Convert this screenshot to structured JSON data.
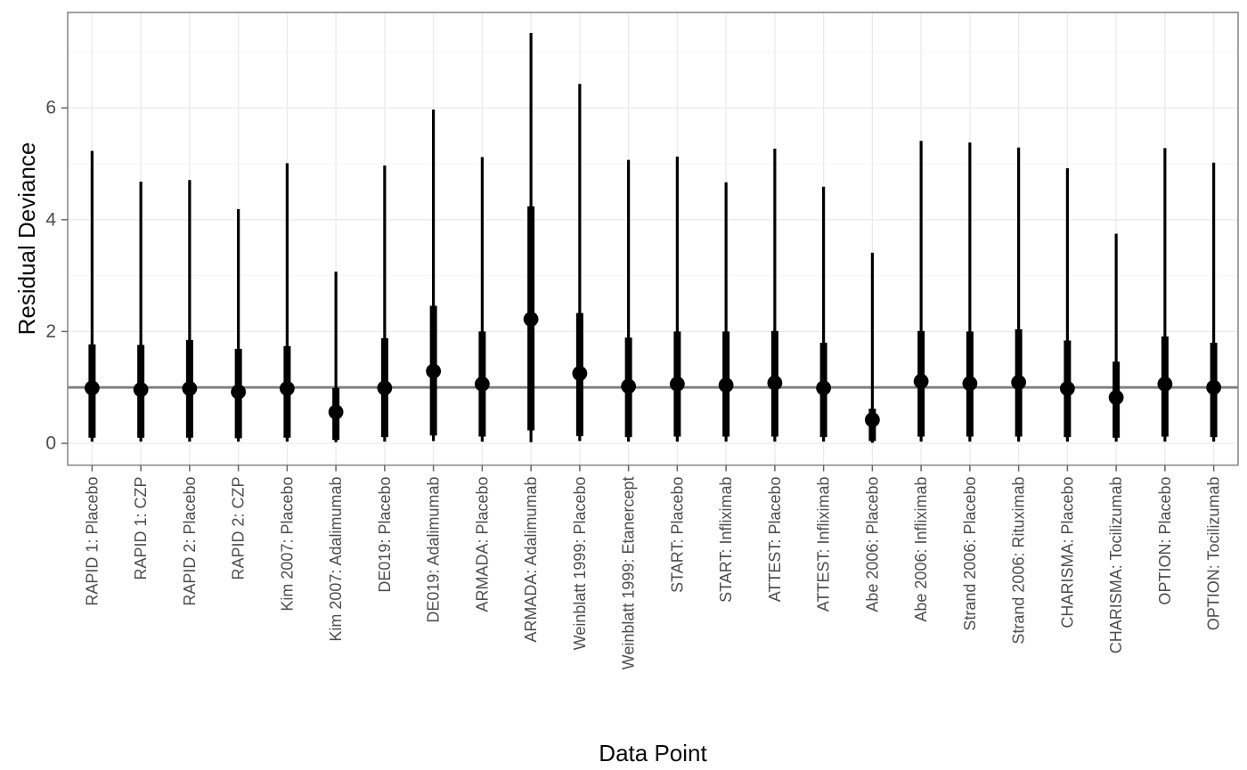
{
  "chart_data": {
    "type": "pointrange",
    "title": "",
    "xlabel": "Data Point",
    "ylabel": "Residual Deviance",
    "ylim": [
      -0.38,
      7.7
    ],
    "yticks": [
      0,
      2,
      4,
      6
    ],
    "yminor": [
      1,
      3,
      5,
      7
    ],
    "reference_line_y": 1.0,
    "grid": true,
    "legend": "none",
    "description": "Posterior mean residual deviance per data point with thick 50% and thin 95% credible intervals; horizontal grey reference line at 1.",
    "categories": [
      "RAPID 1: Placebo",
      "RAPID 1: CZP",
      "RAPID 2: Placebo",
      "RAPID 2: CZP",
      "Kim 2007: Placebo",
      "Kim 2007: Adalimumab",
      "DE019: Placebo",
      "DE019: Adalimumab",
      "ARMADA: Placebo",
      "ARMADA: Adalimumab",
      "Weinblatt 1999: Placebo",
      "Weinblatt 1999: Etanercept",
      "START: Placebo",
      "START: Infliximab",
      "ATTEST: Placebo",
      "ATTEST: Infliximab",
      "Abe 2006: Placebo",
      "Abe 2006: Infliximab",
      "Strand 2006: Placebo",
      "Strand 2006: Rituximab",
      "CHARISMA: Placebo",
      "CHARISMA: Tocilizumab",
      "OPTION: Placebo",
      "OPTION: Tocilizumab"
    ],
    "data_points": [
      {
        "label": "RAPID 1: Placebo",
        "mean": 0.99,
        "ci50": [
          0.1,
          1.77
        ],
        "ci95": [
          0.03,
          5.23
        ]
      },
      {
        "label": "RAPID 1: CZP",
        "mean": 0.96,
        "ci50": [
          0.1,
          1.76
        ],
        "ci95": [
          0.03,
          4.68
        ]
      },
      {
        "label": "RAPID 2: Placebo",
        "mean": 0.98,
        "ci50": [
          0.1,
          1.85
        ],
        "ci95": [
          0.03,
          4.71
        ]
      },
      {
        "label": "RAPID 2: CZP",
        "mean": 0.92,
        "ci50": [
          0.09,
          1.69
        ],
        "ci95": [
          0.03,
          4.19
        ]
      },
      {
        "label": "Kim 2007: Placebo",
        "mean": 0.98,
        "ci50": [
          0.1,
          1.74
        ],
        "ci95": [
          0.03,
          5.01
        ]
      },
      {
        "label": "Kim 2007: Adalimumab",
        "mean": 0.56,
        "ci50": [
          0.06,
          0.99
        ],
        "ci95": [
          0.02,
          3.07
        ]
      },
      {
        "label": "DE019: Placebo",
        "mean": 0.99,
        "ci50": [
          0.11,
          1.88
        ],
        "ci95": [
          0.03,
          4.97
        ]
      },
      {
        "label": "DE019: Adalimumab",
        "mean": 1.29,
        "ci50": [
          0.14,
          2.46
        ],
        "ci95": [
          0.04,
          5.97
        ]
      },
      {
        "label": "ARMADA: Placebo",
        "mean": 1.06,
        "ci50": [
          0.12,
          2.0
        ],
        "ci95": [
          0.03,
          5.12
        ]
      },
      {
        "label": "ARMADA: Adalimumab",
        "mean": 2.22,
        "ci50": [
          0.23,
          4.24
        ],
        "ci95": [
          0.02,
          7.34
        ]
      },
      {
        "label": "Weinblatt 1999: Placebo",
        "mean": 1.25,
        "ci50": [
          0.13,
          2.33
        ],
        "ci95": [
          0.04,
          6.43
        ]
      },
      {
        "label": "Weinblatt 1999: Etanercept",
        "mean": 1.02,
        "ci50": [
          0.11,
          1.89
        ],
        "ci95": [
          0.03,
          5.07
        ]
      },
      {
        "label": "START: Placebo",
        "mean": 1.06,
        "ci50": [
          0.12,
          2.0
        ],
        "ci95": [
          0.03,
          5.13
        ]
      },
      {
        "label": "START: Infliximab",
        "mean": 1.04,
        "ci50": [
          0.12,
          2.0
        ],
        "ci95": [
          0.03,
          4.67
        ]
      },
      {
        "label": "ATTEST: Placebo",
        "mean": 1.08,
        "ci50": [
          0.12,
          2.01
        ],
        "ci95": [
          0.03,
          5.27
        ]
      },
      {
        "label": "ATTEST: Infliximab",
        "mean": 0.99,
        "ci50": [
          0.11,
          1.8
        ],
        "ci95": [
          0.03,
          4.59
        ]
      },
      {
        "label": "Abe 2006: Placebo",
        "mean": 0.42,
        "ci50": [
          0.04,
          0.62
        ],
        "ci95": [
          0.01,
          3.41
        ]
      },
      {
        "label": "Abe 2006: Infliximab",
        "mean": 1.11,
        "ci50": [
          0.12,
          2.01
        ],
        "ci95": [
          0.03,
          5.41
        ]
      },
      {
        "label": "Strand 2006: Placebo",
        "mean": 1.07,
        "ci50": [
          0.12,
          2.0
        ],
        "ci95": [
          0.03,
          5.38
        ]
      },
      {
        "label": "Strand 2006: Rituximab",
        "mean": 1.09,
        "ci50": [
          0.12,
          2.04
        ],
        "ci95": [
          0.03,
          5.29
        ]
      },
      {
        "label": "CHARISMA: Placebo",
        "mean": 0.98,
        "ci50": [
          0.11,
          1.84
        ],
        "ci95": [
          0.03,
          4.92
        ]
      },
      {
        "label": "CHARISMA: Tocilizumab",
        "mean": 0.82,
        "ci50": [
          0.1,
          1.46
        ],
        "ci95": [
          0.03,
          3.75
        ]
      },
      {
        "label": "OPTION: Placebo",
        "mean": 1.06,
        "ci50": [
          0.12,
          1.91
        ],
        "ci95": [
          0.03,
          5.28
        ]
      },
      {
        "label": "OPTION: Tocilizumab",
        "mean": 1.0,
        "ci50": [
          0.11,
          1.8
        ],
        "ci95": [
          0.03,
          5.02
        ]
      }
    ],
    "style": {
      "geom_color": "#000000",
      "reference_line_color": "#7f7f7f",
      "panel_border_color": "#8a8a8a",
      "grid_major_color": "#ebebeb",
      "grid_minor_color": "#f5f5f5",
      "tick_color": "#666666",
      "tick_label_color": "#4d4d4d",
      "background": "#ffffff"
    }
  }
}
